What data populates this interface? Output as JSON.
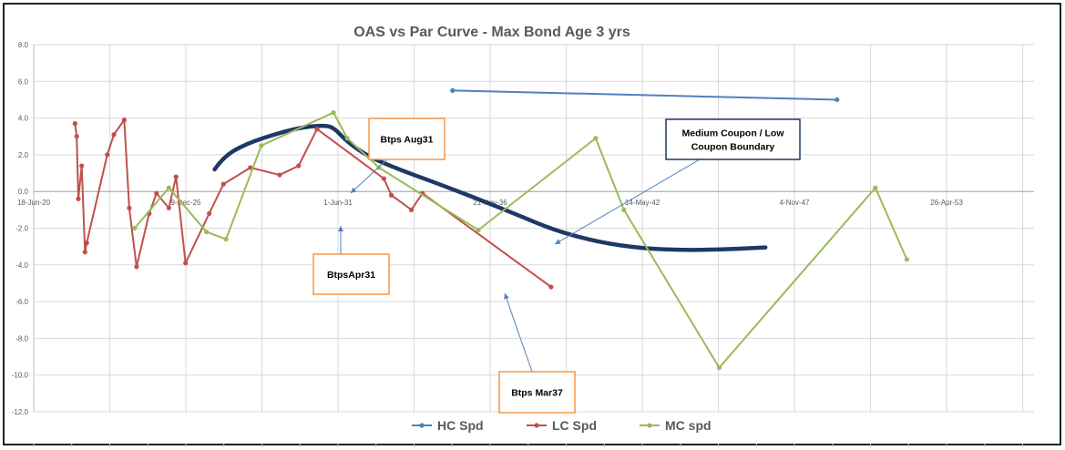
{
  "chart_data": {
    "type": "line",
    "title": "OAS vs Par Curve - Max Bond Age 3 yrs",
    "xlabel": "",
    "ylabel": "",
    "x_axis": {
      "type": "date",
      "range": [
        "2020-06-18",
        "2056-06-18"
      ],
      "tick_labels": [
        "18-Jun-20",
        "9-Dec-25",
        "1-Jun-31",
        "21-Nov-36",
        "14-May-42",
        "4-Nov-47",
        "26-Apr-53"
      ],
      "tick_values": [
        "2020-06-18",
        "2025-12-09",
        "2031-06-01",
        "2036-11-21",
        "2042-05-14",
        "2047-11-04",
        "2053-04-26"
      ]
    },
    "y_axis": {
      "range": [
        -12,
        8
      ],
      "tick_values": [
        8,
        6,
        4,
        2,
        0,
        -2,
        -4,
        -6,
        -8,
        -10,
        -12
      ],
      "tick_labels": [
        "8.0",
        "6.0",
        "4.0",
        "2.0",
        "0.0",
        "-2.0",
        "-4.0",
        "-6.0",
        "-8.0",
        "-10.0",
        "-12.0"
      ]
    },
    "grid": true,
    "legend_position": "bottom",
    "series": [
      {
        "name": "HC Spd",
        "color": "#4F81BD",
        "points": [
          [
            "2035-07-16",
            5.5
          ],
          [
            "2049-05-16",
            5.0
          ]
        ]
      },
      {
        "name": "LC Spd",
        "color": "#C0504D",
        "points": [
          [
            "2021-12-13",
            3.7
          ],
          [
            "2022-01-04",
            3.0
          ],
          [
            "2022-01-26",
            -0.4
          ],
          [
            "2022-03-11",
            1.4
          ],
          [
            "2022-04-23",
            -3.3
          ],
          [
            "2022-05-16",
            -2.8
          ],
          [
            "2023-02-10",
            2.0
          ],
          [
            "2023-05-08",
            3.1
          ],
          [
            "2023-09-21",
            3.9
          ],
          [
            "2023-11-26",
            -0.9
          ],
          [
            "2024-03-01",
            -4.1
          ],
          [
            "2024-08-14",
            -1.2
          ],
          [
            "2024-11-18",
            -0.1
          ],
          [
            "2025-04-30",
            -0.9
          ],
          [
            "2025-08-02",
            0.8
          ],
          [
            "2025-12-05",
            -3.9
          ],
          [
            "2026-10-12",
            -1.2
          ],
          [
            "2027-04-17",
            0.4
          ],
          [
            "2028-04-05",
            1.3
          ],
          [
            "2029-04-24",
            0.9
          ],
          [
            "2029-12-30",
            1.4
          ],
          [
            "2030-08-29",
            3.4
          ],
          [
            "2033-01-24",
            0.7
          ],
          [
            "2033-05-02",
            -0.2
          ],
          [
            "2034-01-20",
            -1.0
          ],
          [
            "2034-06-16",
            -0.1
          ],
          [
            "2039-01-30",
            -5.2
          ]
        ]
      },
      {
        "name": "MC spd",
        "color": "#9BBB59",
        "points": [
          [
            "2024-02-05",
            -2.0
          ],
          [
            "2025-04-30",
            0.2
          ],
          [
            "2026-09-06",
            -2.2
          ],
          [
            "2027-05-21",
            -2.6
          ],
          [
            "2028-08-27",
            2.5
          ],
          [
            "2031-04-03",
            4.3
          ],
          [
            "2031-09-30",
            2.9
          ],
          [
            "2032-11-21",
            1.3
          ],
          [
            "2036-06-19",
            -2.1
          ],
          [
            "2040-09-08",
            2.9
          ],
          [
            "2041-09-14",
            -1.0
          ],
          [
            "2045-02-18",
            -9.6
          ],
          [
            "2050-10-03",
            0.2
          ],
          [
            "2051-11-20",
            -3.7
          ]
        ]
      }
    ],
    "drawn_curve": {
      "color": "#1F3864",
      "points": [
        [
          "2026-12-22",
          1.2
        ],
        [
          "2027-04-17",
          1.9
        ],
        [
          "2028-02-09",
          2.6
        ],
        [
          "2029-04-24",
          3.2
        ],
        [
          "2030-02-24",
          3.5
        ],
        [
          "2030-11-20",
          3.6
        ],
        [
          "2031-04-03",
          3.5
        ],
        [
          "2031-09-30",
          2.7
        ],
        [
          "2032-07-05",
          1.9
        ],
        [
          "2033-08-09",
          1.2
        ],
        [
          "2034-11-17",
          0.5
        ],
        [
          "2036-04-07",
          -0.3
        ],
        [
          "2037-11-30",
          -1.3
        ],
        [
          "2039-03-05",
          -2.1
        ],
        [
          "2040-10-01",
          -2.75
        ],
        [
          "2042-04-27",
          -3.1
        ],
        [
          "2043-11-20",
          -3.2
        ],
        [
          "2045-06-17",
          -3.15
        ],
        [
          "2046-10-19",
          -3.05
        ]
      ]
    },
    "annotations": [
      {
        "id": "aug31",
        "text": [
          "Btps Aug31"
        ],
        "border": "#F79646"
      },
      {
        "id": "apr31",
        "text": [
          "BtpsApr31"
        ],
        "border": "#F79646"
      },
      {
        "id": "mar37",
        "text": [
          "Btps Mar37"
        ],
        "border": "#F79646"
      },
      {
        "id": "boundary",
        "text": [
          "Medium Coupon / Low",
          "Coupon Boundary"
        ],
        "border": "#1F3864"
      }
    ]
  }
}
